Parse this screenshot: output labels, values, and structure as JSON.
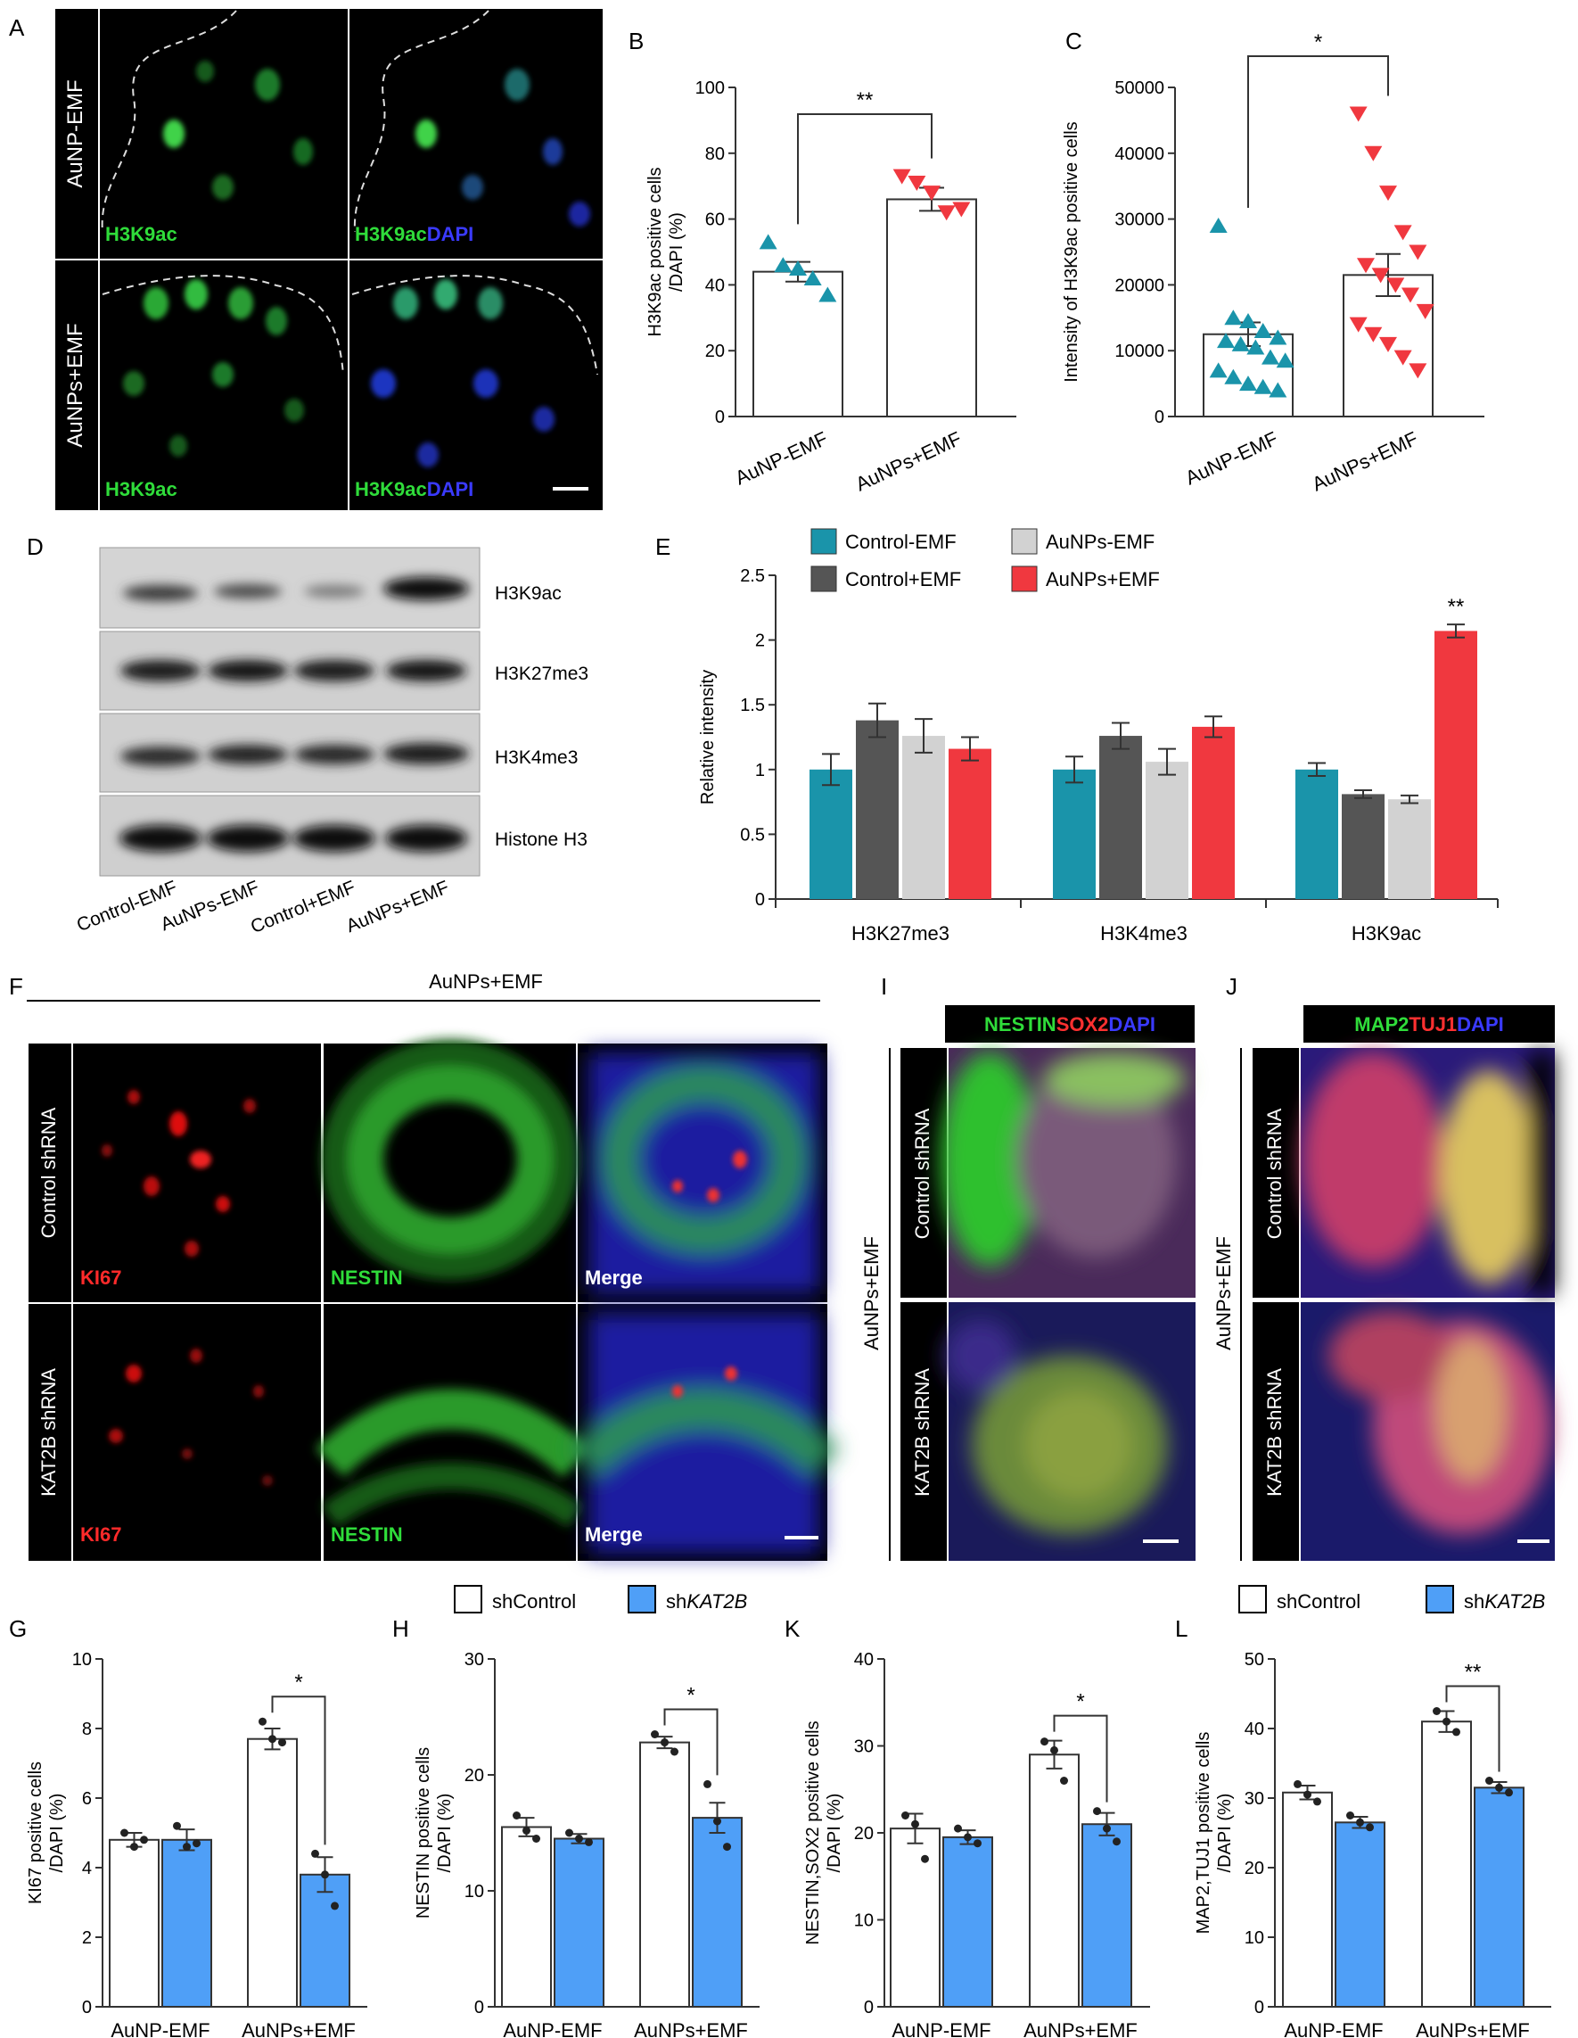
{
  "colors": {
    "teal": "#1a94aa",
    "dark_gray": "#555555",
    "light_gray": "#d2d2d2",
    "red": "#f0383f",
    "blue": "#4f9ff7",
    "white": "#ffffff",
    "black": "#000000"
  },
  "panel_letters": {
    "A": "A",
    "B": "B",
    "C": "C",
    "D": "D",
    "E": "E",
    "F": "F",
    "I": "I",
    "J": "J",
    "G": "G",
    "H": "H",
    "K": "K",
    "L": "L"
  },
  "panel_a": {
    "row_labels": [
      "AuNP-EMF",
      "AuNPs+EMF"
    ],
    "marker": "H3K9ac",
    "dapi": "DAPI"
  },
  "panel_d": {
    "bands": [
      "H3K9ac",
      "H3K27me3",
      "H3K4me3",
      "Histone H3"
    ],
    "lanes": [
      "Control-EMF",
      "AuNPs-EMF",
      "Control+EMF",
      "AuNPs+EMF"
    ]
  },
  "panel_f": {
    "header": "AuNPs+EMF",
    "row_labels": [
      "Control shRNA",
      "KAT2B shRNA"
    ],
    "ki67": "KI67",
    "nestin": "NESTIN",
    "merge": "Merge"
  },
  "panel_i": {
    "side_label": "AuNPs+EMF",
    "header": {
      "a": "NESTIN",
      "b": "SOX2",
      "c": "DAPI"
    },
    "row_labels": [
      "Control shRNA",
      "KAT2B shRNA"
    ]
  },
  "panel_j": {
    "side_label": "AuNPs+EMF",
    "header": {
      "a": "MAP2",
      "b": "TUJ1",
      "c": "DAPI"
    },
    "row_labels": [
      "Control shRNA",
      "KAT2B shRNA"
    ]
  },
  "legend_sh": {
    "control": "shControl",
    "kat_prefix": "sh",
    "kat_gene": "KAT2B"
  },
  "chart_data": [
    {
      "id": "B",
      "type": "bar",
      "categories": [
        "AuNP-EMF",
        "AuNPs+EMF"
      ],
      "values": [
        44,
        66
      ],
      "errors": [
        3,
        3.5
      ],
      "points": [
        [
          53,
          46,
          45,
          42,
          37
        ],
        [
          73,
          71,
          68,
          62,
          63
        ]
      ],
      "ylim": [
        0,
        100
      ],
      "yticks": [
        0,
        20,
        40,
        60,
        80,
        100
      ],
      "ylabel": "H3K9ac positive cells /DAPI  (%)",
      "significance": "**",
      "grid": false
    },
    {
      "id": "C",
      "type": "bar",
      "categories": [
        "AuNP-EMF",
        "AuNPs+EMF"
      ],
      "values": [
        12500,
        21500
      ],
      "errors": [
        1800,
        3200
      ],
      "points": [
        [
          29000,
          15000,
          14500,
          13000,
          12000,
          11500,
          11000,
          10500,
          9000,
          8500,
          7000,
          6000,
          5000,
          4500,
          4000
        ],
        [
          46000,
          40000,
          34000,
          28000,
          25000,
          23000,
          21500,
          20000,
          18500,
          16000,
          14000,
          12500,
          11000,
          9000,
          7000
        ]
      ],
      "ylim": [
        0,
        50000
      ],
      "yticks": [
        0,
        10000,
        20000,
        30000,
        40000,
        50000
      ],
      "ylabel": "Intensity of H3K9ac positive cells",
      "significance": "*",
      "grid": false
    },
    {
      "id": "E",
      "type": "bar",
      "categories": [
        "H3K27me3",
        "H3K4me3",
        "H3K9ac"
      ],
      "series": [
        {
          "name": "Control-EMF",
          "values": [
            1.0,
            1.0,
            1.0
          ],
          "errors": [
            0.12,
            0.1,
            0.05
          ]
        },
        {
          "name": "Control+EMF",
          "values": [
            1.38,
            1.26,
            0.81
          ],
          "errors": [
            0.13,
            0.1,
            0.03
          ]
        },
        {
          "name": "AuNPs-EMF",
          "values": [
            1.26,
            1.06,
            0.77
          ],
          "errors": [
            0.13,
            0.1,
            0.03
          ]
        },
        {
          "name": "AuNPs+EMF",
          "values": [
            1.16,
            1.33,
            2.07
          ],
          "errors": [
            0.09,
            0.08,
            0.05
          ]
        }
      ],
      "ylim": [
        0,
        2.5
      ],
      "yticks": [
        "0",
        "0.5",
        "1",
        "1.5",
        "2",
        "2.5"
      ],
      "ylabel": "Relative intensity",
      "significance": "**",
      "legend": "top",
      "grid": false
    },
    {
      "id": "G",
      "type": "bar",
      "categories": [
        "AuNP-EMF",
        "AuNPs+EMF"
      ],
      "series": [
        {
          "name": "shControl",
          "values": [
            4.8,
            7.7
          ],
          "errors": [
            0.2,
            0.3
          ],
          "points": [
            [
              5.0,
              4.6,
              4.8
            ],
            [
              8.2,
              7.7,
              7.6
            ]
          ]
        },
        {
          "name": "shKAT2B",
          "values": [
            4.8,
            3.8
          ],
          "errors": [
            0.3,
            0.5
          ],
          "points": [
            [
              5.2,
              4.6,
              4.7
            ],
            [
              4.4,
              3.8,
              2.9
            ]
          ]
        }
      ],
      "ylim": [
        0,
        10
      ],
      "yticks": [
        0,
        2,
        4,
        6,
        8,
        10
      ],
      "ylabel": "KI67 positive cells /DAPI  (%)",
      "significance": "*",
      "grid": false
    },
    {
      "id": "H",
      "type": "bar",
      "categories": [
        "AuNP-EMF",
        "AuNPs+EMF"
      ],
      "series": [
        {
          "name": "shControl",
          "values": [
            15.5,
            22.8
          ],
          "errors": [
            0.8,
            0.5
          ],
          "points": [
            [
              16.5,
              15.2,
              14.5
            ],
            [
              23.5,
              22.8,
              22.0
            ]
          ]
        },
        {
          "name": "shKAT2B",
          "values": [
            14.5,
            16.3
          ],
          "errors": [
            0.4,
            1.3
          ],
          "points": [
            [
              15.0,
              14.5,
              14.2
            ],
            [
              19.2,
              16.0,
              13.8
            ]
          ]
        }
      ],
      "ylim": [
        0,
        30
      ],
      "yticks": [
        0,
        10,
        20,
        30
      ],
      "ylabel": "NESTIN  positive cells /DAPI  (%)",
      "significance": "*",
      "grid": false
    },
    {
      "id": "K",
      "type": "bar",
      "categories": [
        "AuNP-EMF",
        "AuNPs+EMF"
      ],
      "series": [
        {
          "name": "shControl",
          "values": [
            20.5,
            29.0
          ],
          "errors": [
            1.7,
            1.6
          ],
          "points": [
            [
              22.0,
              21.0,
              17.0
            ],
            [
              30.5,
              29.5,
              26.0
            ]
          ]
        },
        {
          "name": "shKAT2B",
          "values": [
            19.5,
            21.0
          ],
          "errors": [
            0.8,
            1.3
          ],
          "points": [
            [
              20.5,
              19.5,
              18.8
            ],
            [
              22.5,
              20.5,
              19.0
            ]
          ]
        }
      ],
      "ylim": [
        0,
        40
      ],
      "yticks": [
        0,
        10,
        20,
        30,
        40
      ],
      "ylabel": "NESTIN,SOX2  positive cells /DAPI  (%)",
      "significance": "*",
      "grid": false
    },
    {
      "id": "L",
      "type": "bar",
      "categories": [
        "AuNP-EMF",
        "AuNPs+EMF"
      ],
      "series": [
        {
          "name": "shControl",
          "values": [
            30.8,
            41.0
          ],
          "errors": [
            1.0,
            1.5
          ],
          "points": [
            [
              32.0,
              30.5,
              29.5
            ],
            [
              42.5,
              41.0,
              39.5
            ]
          ]
        },
        {
          "name": "shKAT2B",
          "values": [
            26.5,
            31.5
          ],
          "errors": [
            0.8,
            0.8
          ],
          "points": [
            [
              27.5,
              26.5,
              25.8
            ],
            [
              32.5,
              31.5,
              30.8
            ]
          ]
        }
      ],
      "ylim": [
        0,
        50
      ],
      "yticks": [
        0,
        10,
        20,
        30,
        40,
        50
      ],
      "ylabel": "MAP2,TUJ1  positive cells /DAPI  (%)",
      "significance": "**",
      "grid": false
    }
  ]
}
